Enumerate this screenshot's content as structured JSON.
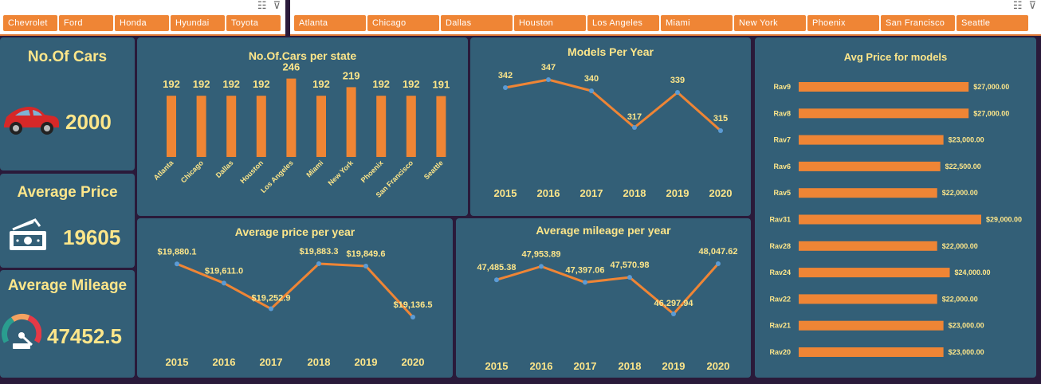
{
  "make_slicer": {
    "items": [
      "Chevrolet",
      "Ford",
      "Honda",
      "Hyundai",
      "Toyota"
    ]
  },
  "city_slicer": {
    "items": [
      "Atlanta",
      "Chicago",
      "Dallas",
      "Houston",
      "Los Angeles",
      "Miami",
      "New York",
      "Phoenix",
      "San Francisco",
      "Seattle"
    ]
  },
  "slicer_icons": {
    "multiselect": "multi-select-icon",
    "clear_filter": "clear-filter-icon"
  },
  "kpis": {
    "cars": {
      "title": "No.Of Cars",
      "value": "2000",
      "icon": "car-icon"
    },
    "price": {
      "title": "Average Price",
      "value": "19605",
      "icon": "money-icon"
    },
    "mileage": {
      "title": "Average Mileage",
      "value": "47452.5",
      "icon": "speedometer-icon"
    }
  },
  "colors": {
    "panel": "#335f77",
    "accent": "#ef8535",
    "text": "#fde68a",
    "point": "#5b9bd5",
    "background": "#2a1a3a"
  },
  "chart_data": [
    {
      "id": "cars_per_state",
      "type": "bar",
      "title": "No.Of.Cars per state",
      "categories": [
        "Atlanta",
        "Chicago",
        "Dallas",
        "Houston",
        "Los Angeles",
        "Miami",
        "New York",
        "Phoenix",
        "San Francisco",
        "Seattle"
      ],
      "values": [
        192,
        192,
        192,
        192,
        246,
        192,
        219,
        192,
        192,
        191
      ],
      "data_labels": [
        "192",
        "192",
        "192",
        "192",
        "246",
        "192",
        "219",
        "192",
        "192",
        "191"
      ],
      "ylim": [
        0,
        300
      ]
    },
    {
      "id": "models_per_year",
      "type": "line",
      "title": "Models Per Year",
      "x": [
        "2015",
        "2016",
        "2017",
        "2018",
        "2019",
        "2020"
      ],
      "values": [
        342,
        347,
        340,
        317,
        339,
        315
      ],
      "data_labels": [
        "342",
        "347",
        "340",
        "317",
        "339",
        "315"
      ]
    },
    {
      "id": "price_per_year",
      "type": "line",
      "title": "Average price per year",
      "x": [
        "2015",
        "2016",
        "2017",
        "2018",
        "2019",
        "2020"
      ],
      "values": [
        19880.1,
        19611.0,
        19252.9,
        19883.3,
        19849.6,
        19136.5
      ],
      "data_labels": [
        "$19,880.1",
        "$19,611.0",
        "$19,252.9",
        "$19,883.3",
        "$19,849.6",
        "$19,136.5"
      ]
    },
    {
      "id": "mileage_per_year",
      "type": "line",
      "title": "Average mileage per year",
      "x": [
        "2015",
        "2016",
        "2017",
        "2018",
        "2019",
        "2020"
      ],
      "values": [
        47485.38,
        47953.89,
        47397.06,
        47570.98,
        46297.94,
        48047.62
      ],
      "data_labels": [
        "47,485.38",
        "47,953.89",
        "47,397.06",
        "47,570.98",
        "46,297.94",
        "48,047.62"
      ]
    },
    {
      "id": "avg_price_models",
      "type": "bar",
      "orientation": "horizontal",
      "title": "Avg Price for models",
      "categories": [
        "Rav9",
        "Rav8",
        "Rav7",
        "Rav6",
        "Rav5",
        "Rav31",
        "Rav28",
        "Rav24",
        "Rav22",
        "Rav21",
        "Rav20"
      ],
      "values": [
        27000,
        27000,
        23000,
        22500,
        22000,
        29000,
        22000,
        24000,
        22000,
        23000,
        23000
      ],
      "data_labels": [
        "$27,000.00",
        "$27,000.00",
        "$23,000.00",
        "$22,500.00",
        "$22,000.00",
        "$29,000.00",
        "$22,000.00",
        "$24,000.00",
        "$22,000.00",
        "$23,000.00",
        "$23,000.00"
      ]
    }
  ]
}
